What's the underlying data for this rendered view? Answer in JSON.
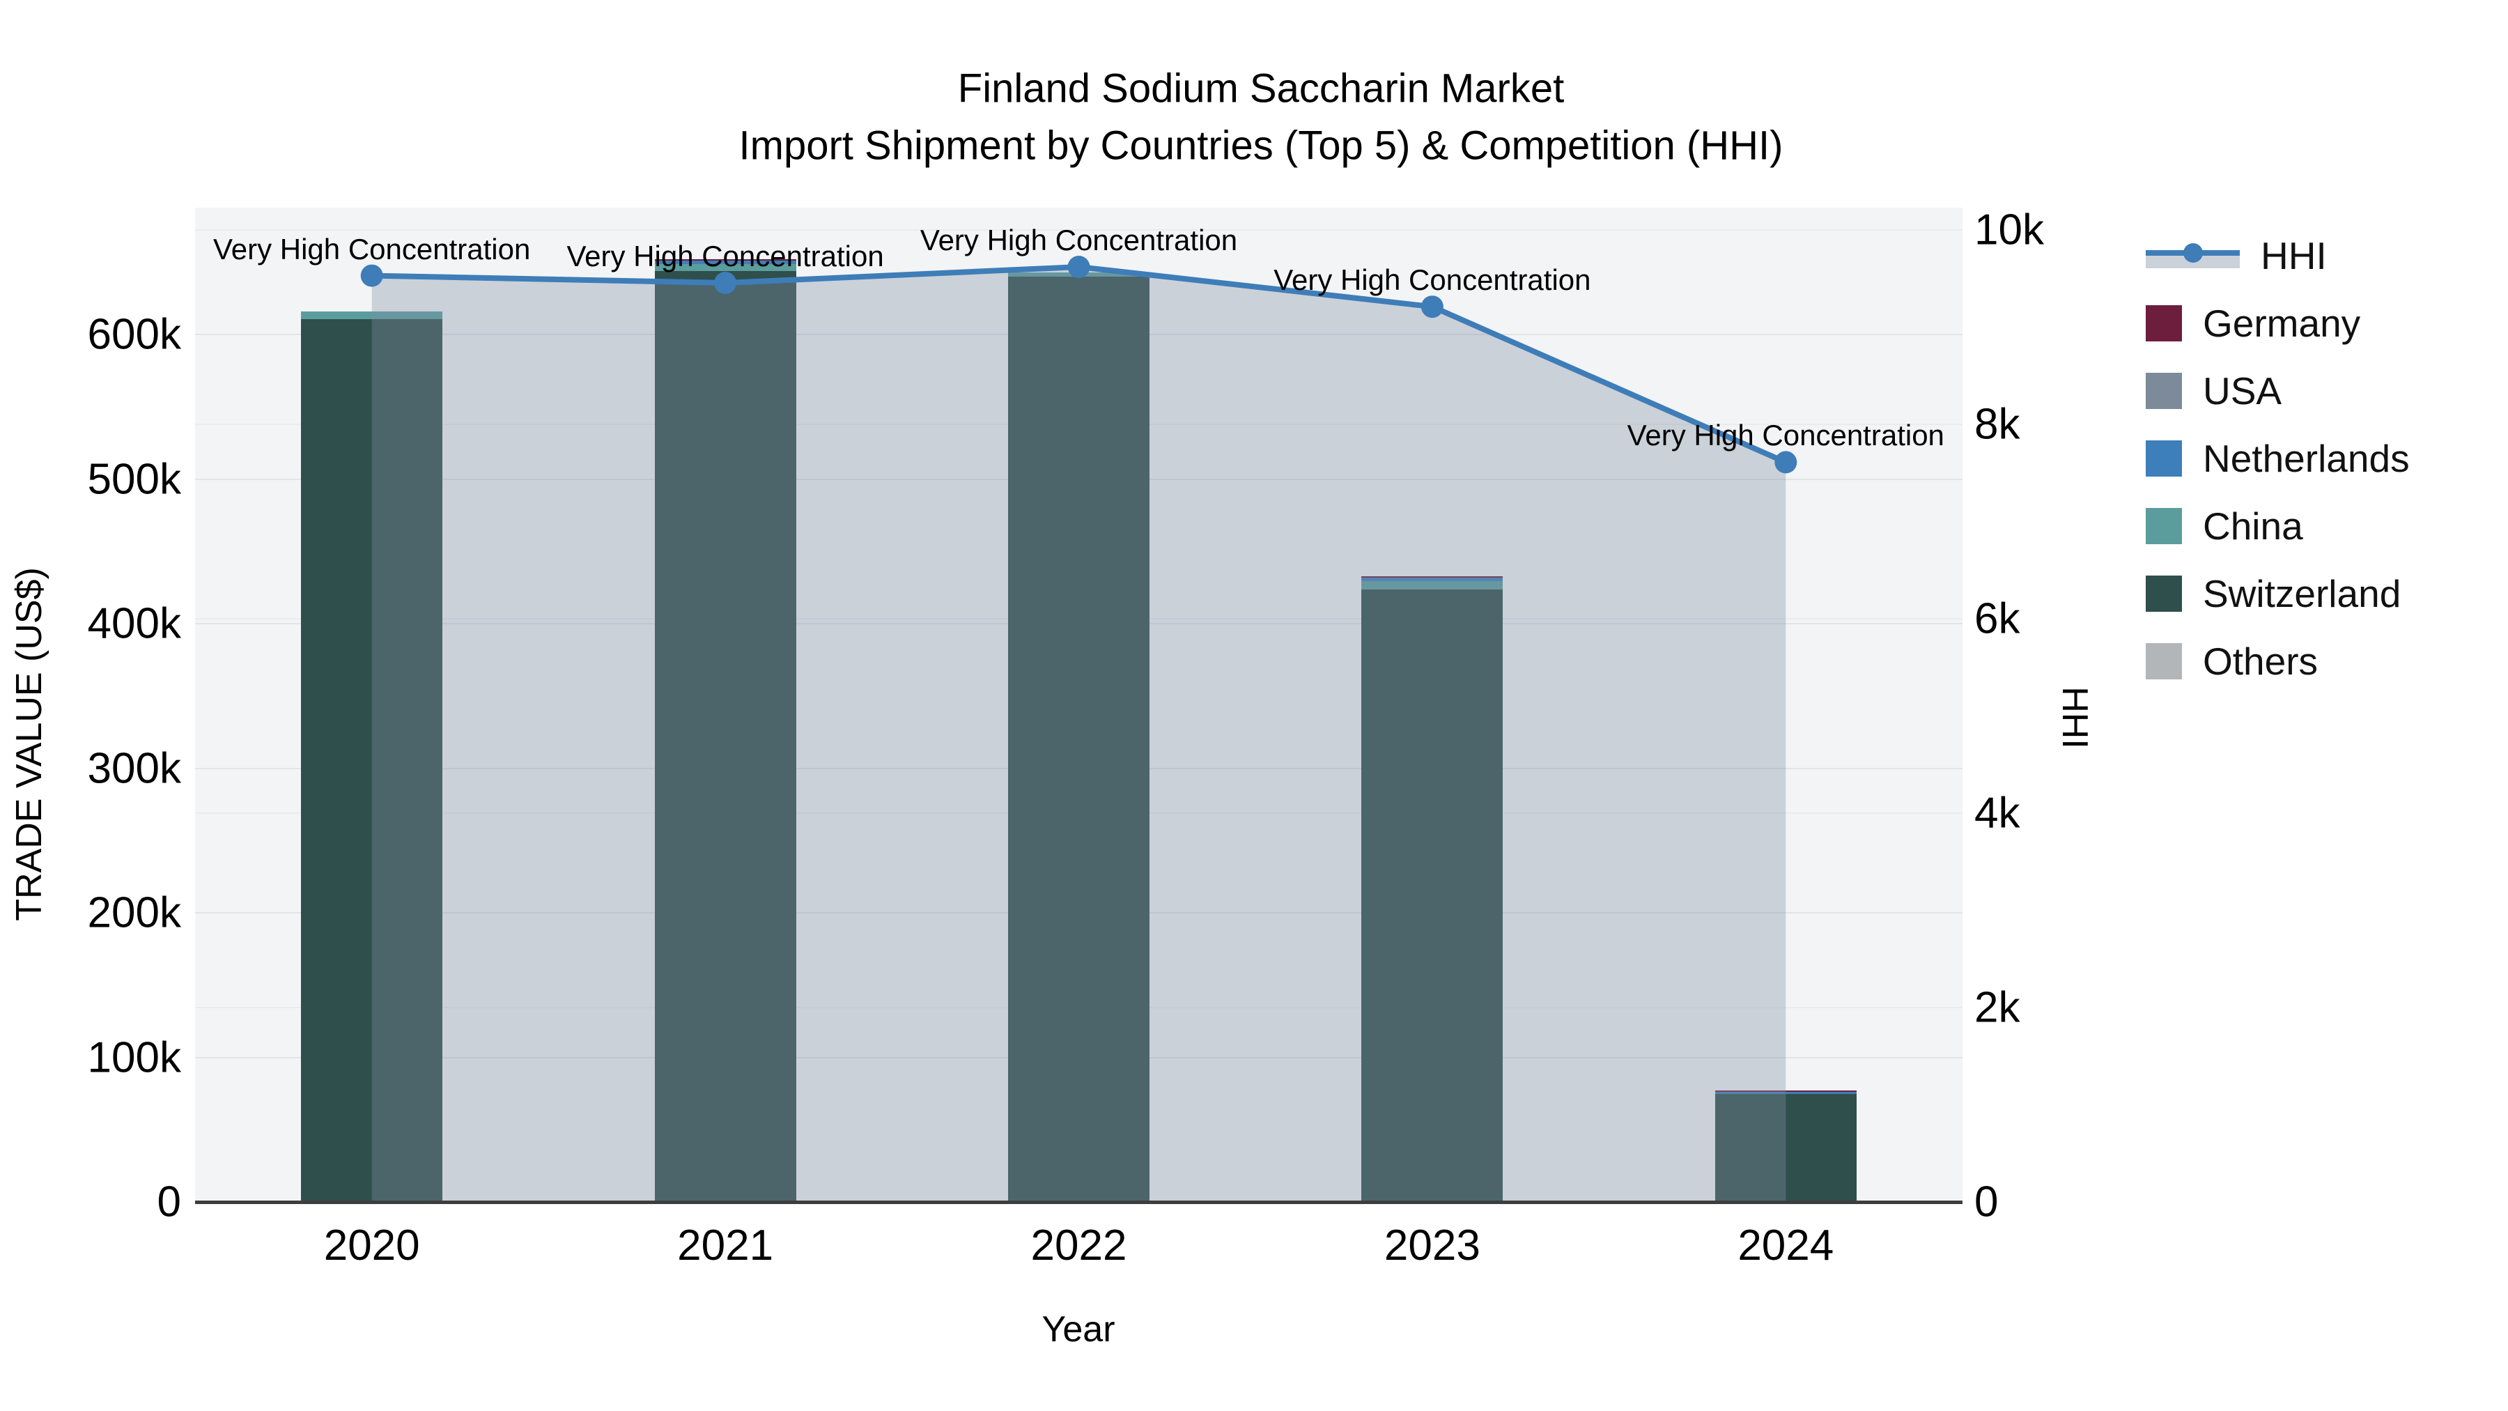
{
  "title": {
    "line1": "Finland Sodium Saccharin Market",
    "line2": "Import Shipment by Countries (Top 5) & Competition (HHI)"
  },
  "axes": {
    "x": {
      "label": "Year",
      "ticks": [
        "2020",
        "2021",
        "2022",
        "2023",
        "2024"
      ]
    },
    "y_left": {
      "label": "TRADE VALUE (US$)",
      "tick_labels": [
        "0",
        "100k",
        "200k",
        "300k",
        "400k",
        "500k",
        "600k"
      ],
      "tick_values": [
        0,
        100000,
        200000,
        300000,
        400000,
        500000,
        600000
      ],
      "range": [
        0,
        687700
      ]
    },
    "y_right": {
      "label": "HHI",
      "tick_labels": [
        "0",
        "2k",
        "4k",
        "6k",
        "8k",
        "10k"
      ],
      "tick_values": [
        0,
        2000,
        4000,
        6000,
        8000,
        10000
      ],
      "range": [
        0,
        10230
      ]
    }
  },
  "legend": {
    "items": [
      {
        "label": "HHI",
        "type": "line",
        "color": "#3e7db8",
        "band": "#cbd1d9"
      },
      {
        "label": "Germany",
        "type": "square",
        "color": "#6e1e3d"
      },
      {
        "label": "USA",
        "type": "square",
        "color": "#7c8a9a"
      },
      {
        "label": "Netherlands",
        "type": "square",
        "color": "#3d7fba"
      },
      {
        "label": "China",
        "type": "square",
        "color": "#5b9d9c"
      },
      {
        "label": "Switzerland",
        "type": "square",
        "color": "#2f4f4c"
      },
      {
        "label": "Others",
        "type": "square",
        "color": "#b2b6b9"
      }
    ]
  },
  "annotations": [
    {
      "year": "2020",
      "text": "Very High Concentration"
    },
    {
      "year": "2021",
      "text": "Very High Concentration"
    },
    {
      "year": "2022",
      "text": "Very High Concentration"
    },
    {
      "year": "2023",
      "text": "Very High Concentration"
    },
    {
      "year": "2024",
      "text": "Very High Concentration"
    }
  ],
  "chart_data": {
    "type": "bar",
    "stacked": true,
    "title": "Finland Sodium Saccharin Market — Import Shipment by Countries (Top 5) & Competition (HHI)",
    "xlabel": "Year",
    "ylabel": "TRADE VALUE (US$)",
    "ylabel_right": "HHI",
    "categories": [
      "2020",
      "2021",
      "2022",
      "2023",
      "2024"
    ],
    "bar_totals": [
      616000,
      652000,
      643000,
      433000,
      77000
    ],
    "stack_order_bottom_to_top": [
      "Switzerland",
      "China",
      "Netherlands",
      "USA",
      "Germany",
      "Others"
    ],
    "series": [
      {
        "name": "Germany",
        "color": "#6e1e3d",
        "values": [
          0,
          1000,
          0,
          1200,
          1000
        ]
      },
      {
        "name": "USA",
        "color": "#7c8a9a",
        "values": [
          0,
          0,
          0,
          0,
          0
        ]
      },
      {
        "name": "Netherlands",
        "color": "#3d7fba",
        "values": [
          0,
          2200,
          0,
          2200,
          1200
        ]
      },
      {
        "name": "China",
        "color": "#5b9d9c",
        "values": [
          5300,
          5000,
          3000,
          5800,
          0
        ]
      },
      {
        "name": "Switzerland",
        "color": "#2f4f4c",
        "values": [
          610700,
          643800,
          640000,
          423800,
          74800
        ]
      },
      {
        "name": "Others",
        "color": "#b2b6b9",
        "values": [
          0,
          0,
          0,
          0,
          0
        ]
      }
    ],
    "line_series": {
      "name": "HHI",
      "axis": "right",
      "color": "#3e7db8",
      "marker_radius": 16,
      "area_fill": "rgba(129,144,165,0.35)",
      "values": [
        9530,
        9455,
        9620,
        9210,
        7610
      ]
    },
    "ylim_left": [
      0,
      687700
    ],
    "ylim_right": [
      0,
      10230
    ],
    "grid": true,
    "legend_position": "right"
  }
}
